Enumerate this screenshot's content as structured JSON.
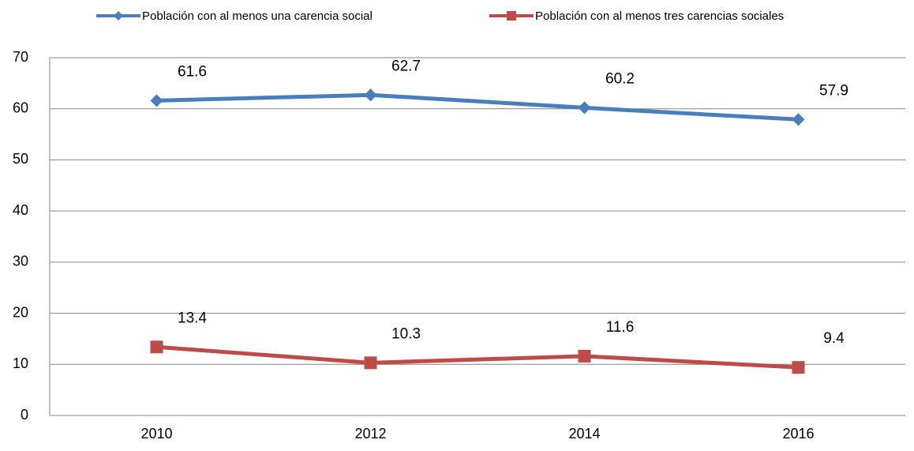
{
  "chart_data": {
    "type": "line",
    "categories": [
      "2010",
      "2012",
      "2014",
      "2016"
    ],
    "series": [
      {
        "name": "Población con al menos una carencia social",
        "color": "#4a7ebb",
        "marker": "diamond",
        "values": [
          61.6,
          62.7,
          60.2,
          57.9
        ]
      },
      {
        "name": "Población con al menos tres carencias sociales",
        "color": "#be4b48",
        "marker": "square",
        "values": [
          13.4,
          10.3,
          11.6,
          9.4
        ]
      }
    ],
    "ylim": [
      0,
      70
    ],
    "yticks": [
      0,
      10,
      20,
      30,
      40,
      50,
      60,
      70
    ],
    "grid": true,
    "legend": "top"
  }
}
